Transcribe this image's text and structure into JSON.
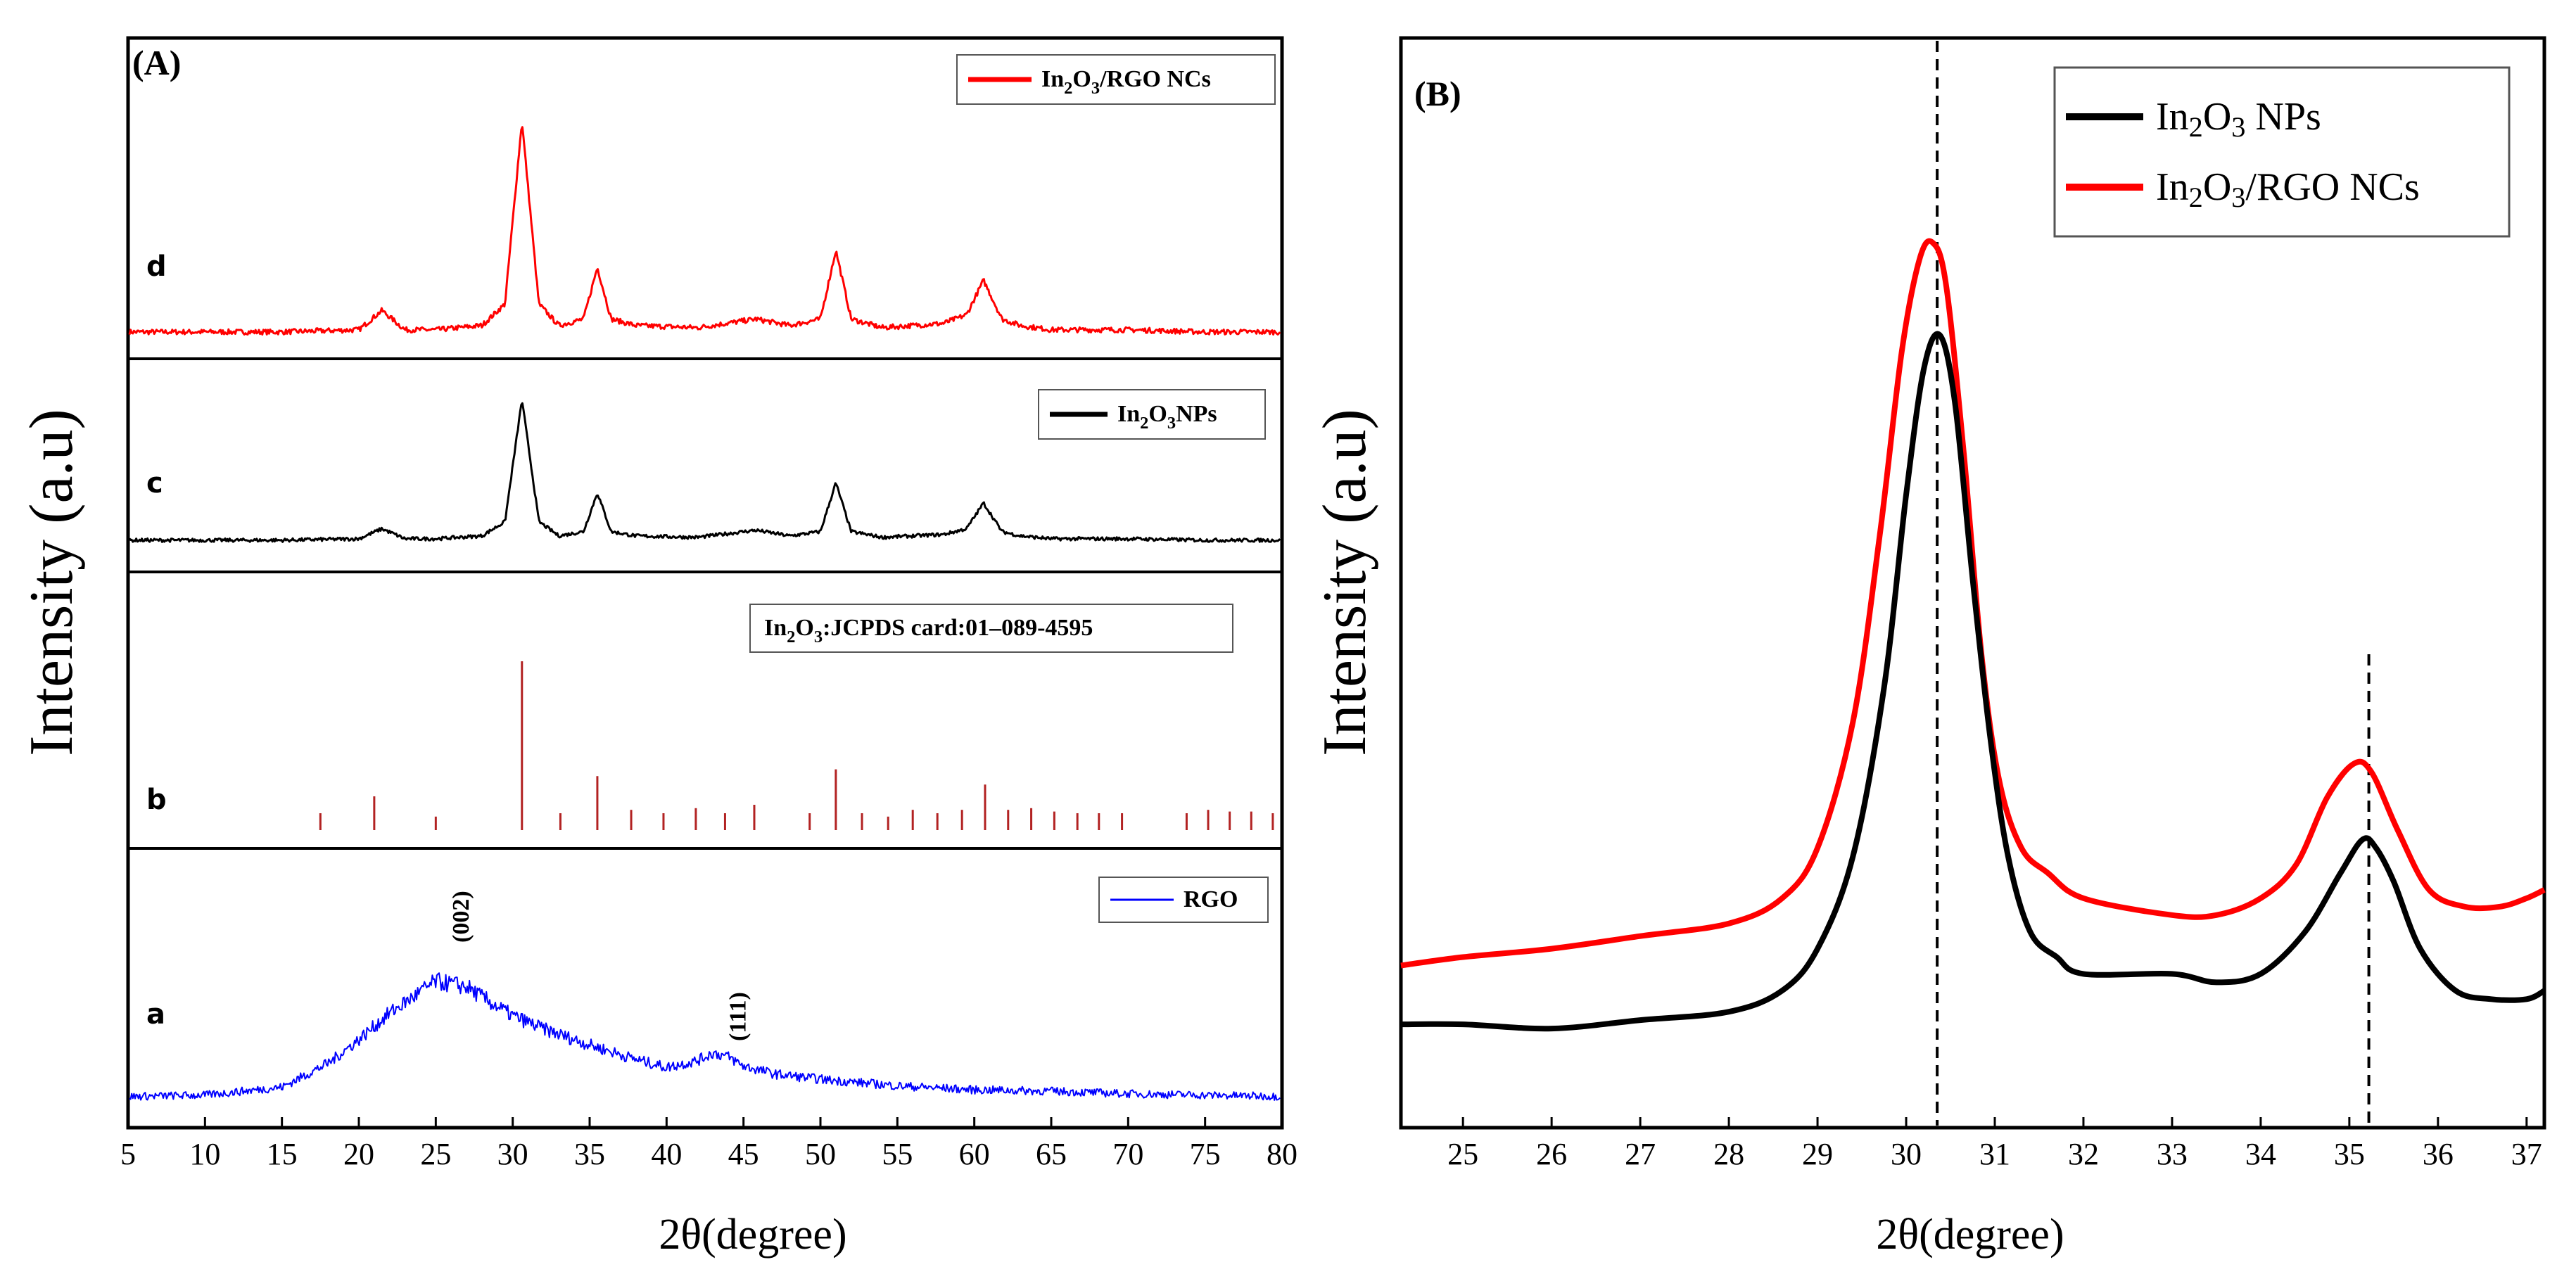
{
  "chart_data": [
    {
      "panel": "(A)",
      "type": "line",
      "xlabel": "2θ(degree)",
      "ylabel": "Intensity (a.u)",
      "xlim": [
        5,
        80
      ],
      "xticks": [
        5,
        10,
        15,
        20,
        25,
        30,
        35,
        40,
        45,
        50,
        55,
        60,
        65,
        70,
        75,
        80
      ],
      "subplots": [
        {
          "curve_label": "d",
          "legend": {
            "main": "In",
            "sub1": "2",
            "mid": "O",
            "sub2": "3",
            "tail": "/RGO NCs"
          },
          "color": "#ff0000",
          "series_name": "In2O3/RGO NCs",
          "x": [
            5,
            10,
            15,
            20,
            21.5,
            23,
            25,
            28,
            29.5,
            30.6,
            31.7,
            33,
            34.6,
            35.5,
            36.4,
            38,
            42,
            45.8,
            48,
            50,
            51.0,
            52,
            54,
            56,
            58,
            59.5,
            60.6,
            61.8,
            63,
            65,
            70,
            75,
            80
          ],
          "y": [
            0.02,
            0.02,
            0.02,
            0.03,
            0.12,
            0.03,
            0.03,
            0.05,
            0.15,
            1.0,
            0.15,
            0.05,
            0.08,
            0.32,
            0.08,
            0.05,
            0.04,
            0.08,
            0.05,
            0.08,
            0.4,
            0.08,
            0.04,
            0.05,
            0.06,
            0.1,
            0.26,
            0.08,
            0.05,
            0.03,
            0.03,
            0.02,
            0.02
          ]
        },
        {
          "curve_label": "c",
          "legend": {
            "main": "In",
            "sub1": "2",
            "mid": "O",
            "sub2": "3",
            "tail": "NPs"
          },
          "color": "#000000",
          "series_name": "In2O3 NPs",
          "x": [
            5,
            10,
            15,
            20,
            21.5,
            23,
            25,
            28,
            29.5,
            30.6,
            31.7,
            33,
            34.6,
            35.5,
            36.4,
            38,
            42,
            45.8,
            48,
            50,
            51.0,
            52,
            54,
            56,
            58,
            59.5,
            60.6,
            61.8,
            63,
            65,
            70,
            75,
            80
          ],
          "y": [
            0.02,
            0.02,
            0.02,
            0.03,
            0.1,
            0.03,
            0.03,
            0.05,
            0.15,
            1.0,
            0.15,
            0.05,
            0.08,
            0.35,
            0.08,
            0.05,
            0.04,
            0.09,
            0.05,
            0.08,
            0.42,
            0.08,
            0.04,
            0.05,
            0.06,
            0.1,
            0.28,
            0.08,
            0.05,
            0.03,
            0.03,
            0.02,
            0.02
          ]
        },
        {
          "curve_label": "b",
          "legend": {
            "main": "In",
            "sub1": "2",
            "mid": "O",
            "sub2": "3",
            "tail": ":JCPDS card:01–089-4595"
          },
          "color": "#b22222",
          "series_name": "In2O3 JCPDS card 01-089-4595",
          "type": "stick",
          "x": [
            17.5,
            21.0,
            25.0,
            30.6,
            33.1,
            35.5,
            37.7,
            39.8,
            41.9,
            43.8,
            45.7,
            49.3,
            51.0,
            52.7,
            54.4,
            56.0,
            57.6,
            59.2,
            60.7,
            62.2,
            63.7,
            65.2,
            66.7,
            68.1,
            69.6,
            73.8,
            75.2,
            76.6,
            78.0,
            79.4
          ],
          "y": [
            0.1,
            0.2,
            0.08,
            1.0,
            0.1,
            0.32,
            0.12,
            0.1,
            0.13,
            0.1,
            0.15,
            0.1,
            0.36,
            0.1,
            0.08,
            0.12,
            0.1,
            0.12,
            0.27,
            0.12,
            0.13,
            0.11,
            0.1,
            0.1,
            0.1,
            0.1,
            0.12,
            0.11,
            0.11,
            0.1
          ]
        },
        {
          "curve_label": "a",
          "legend": {
            "main": "RGO"
          },
          "color": "#0000ff",
          "series_name": "RGO",
          "x": [
            5,
            10,
            15,
            18,
            20,
            22,
            24,
            25,
            26,
            27,
            28,
            30,
            32,
            35,
            38,
            40,
            42,
            43,
            44,
            45,
            47,
            50,
            55,
            60,
            65,
            70,
            75,
            80
          ],
          "y": [
            0.05,
            0.06,
            0.12,
            0.3,
            0.48,
            0.68,
            0.84,
            0.92,
            0.9,
            0.88,
            0.8,
            0.66,
            0.56,
            0.44,
            0.33,
            0.27,
            0.32,
            0.38,
            0.35,
            0.28,
            0.22,
            0.18,
            0.13,
            0.1,
            0.09,
            0.07,
            0.06,
            0.05
          ],
          "annotations": [
            {
              "text": "(002)",
              "x": 26.5
            },
            {
              "text": "(111)",
              "x": 44.5
            }
          ]
        }
      ]
    },
    {
      "panel": "(B)",
      "type": "line",
      "xlabel": "2θ(degree)",
      "ylabel": "Intensity (a.u)",
      "xlim": [
        24.3,
        37.2
      ],
      "ylim": [
        0,
        1.12
      ],
      "xticks": [
        25,
        26,
        27,
        28,
        29,
        30,
        31,
        32,
        33,
        34,
        35,
        36,
        37
      ],
      "vlines": [
        30.35,
        35.22
      ],
      "legend": [
        {
          "main": "In",
          "sub": "2",
          "mid": "O",
          "sub2": "3",
          "tail": " NPs",
          "color": "#000000"
        },
        {
          "main": "In",
          "sub": "2",
          "mid": "O",
          "sub2": "3",
          "tail": "/RGO NCs",
          "color": "#ff0000"
        }
      ],
      "series": [
        {
          "name": "In2O3/RGO NCs",
          "color": "#ff0000",
          "x": [
            24.3,
            25,
            26,
            27,
            28,
            28.6,
            29.0,
            29.4,
            29.7,
            29.95,
            30.15,
            30.3,
            30.45,
            30.65,
            30.85,
            31.05,
            31.3,
            31.6,
            32,
            33,
            33.5,
            34.0,
            34.4,
            34.75,
            35.05,
            35.25,
            35.55,
            35.9,
            36.3,
            36.7,
            37.0,
            37.2
          ],
          "y": [
            0.09,
            0.1,
            0.11,
            0.125,
            0.14,
            0.17,
            0.23,
            0.38,
            0.6,
            0.82,
            0.93,
            0.95,
            0.9,
            0.7,
            0.46,
            0.31,
            0.23,
            0.2,
            0.17,
            0.15,
            0.15,
            0.17,
            0.21,
            0.29,
            0.33,
            0.32,
            0.25,
            0.18,
            0.16,
            0.16,
            0.17,
            0.18
          ]
        },
        {
          "name": "In2O3 NPs",
          "color": "#000000",
          "x": [
            24.3,
            25,
            26,
            27,
            28,
            28.6,
            29.0,
            29.4,
            29.75,
            30.0,
            30.2,
            30.38,
            30.55,
            30.75,
            30.95,
            31.15,
            31.4,
            31.7,
            32,
            33,
            33.5,
            34.0,
            34.5,
            34.9,
            35.15,
            35.3,
            35.5,
            35.8,
            36.2,
            36.6,
            37.0,
            37.2
          ],
          "y": [
            0.02,
            0.02,
            0.015,
            0.025,
            0.035,
            0.06,
            0.11,
            0.22,
            0.42,
            0.65,
            0.8,
            0.84,
            0.76,
            0.55,
            0.36,
            0.22,
            0.13,
            0.1,
            0.08,
            0.08,
            0.07,
            0.08,
            0.13,
            0.2,
            0.24,
            0.23,
            0.19,
            0.11,
            0.06,
            0.05,
            0.05,
            0.06
          ]
        }
      ]
    }
  ]
}
